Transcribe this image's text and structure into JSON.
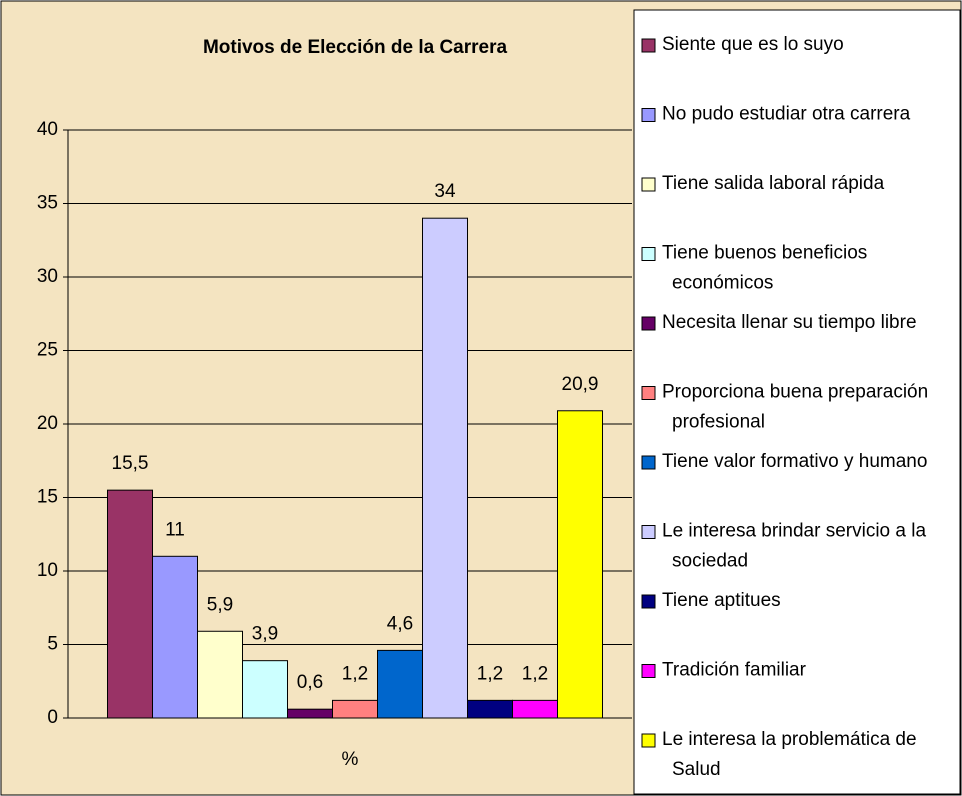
{
  "chart_data": {
    "type": "bar",
    "title": "Motivos de Elección de la Carrera",
    "categories": [
      "%"
    ],
    "series": [
      {
        "name": "Siente  que es lo suyo",
        "color": "#993366",
        "values": [
          15.5
        ],
        "value_labels": [
          "15,5"
        ]
      },
      {
        "name": "No pudo estudiar otra carrera",
        "color": "#9999ff",
        "values": [
          11
        ],
        "value_labels": [
          "11"
        ]
      },
      {
        "name": "Tiene salida laboral rápida",
        "color": "#ffffcc",
        "values": [
          5.9
        ],
        "value_labels": [
          "5,9"
        ]
      },
      {
        "name": "Tiene buenos beneficios económicos",
        "color": "#ccffff",
        "values": [
          3.9
        ],
        "value_labels": [
          "3,9"
        ]
      },
      {
        "name": "Necesita llenar su tiempo libre",
        "color": "#660066",
        "values": [
          0.6
        ],
        "value_labels": [
          "0,6"
        ]
      },
      {
        "name": "Proporciona buena preparación profesional",
        "color": "#ff8080",
        "values": [
          1.2
        ],
        "value_labels": [
          "1,2"
        ]
      },
      {
        "name": "Tiene valor formativo y humano",
        "color": "#0066cc",
        "values": [
          4.6
        ],
        "value_labels": [
          "4,6"
        ]
      },
      {
        "name": "Le interesa brindar servicio a la sociedad",
        "color": "#ccccff",
        "values": [
          34
        ],
        "value_labels": [
          "34"
        ]
      },
      {
        "name": "Tiene  aptitues",
        "color": "#000080",
        "values": [
          1.2
        ],
        "value_labels": [
          "1,2"
        ]
      },
      {
        "name": "Tradición familiar",
        "color": "#ff00ff",
        "values": [
          1.2
        ],
        "value_labels": [
          "1,2"
        ]
      },
      {
        "name": "Le interesa la problemática de Salud",
        "color": "#ffff00",
        "values": [
          20.9
        ],
        "value_labels": [
          "20,9"
        ]
      }
    ],
    "ylim": [
      0,
      40
    ],
    "yticks": [
      0,
      5,
      10,
      15,
      20,
      25,
      30,
      35,
      40
    ],
    "grid": true,
    "legend": "right"
  }
}
